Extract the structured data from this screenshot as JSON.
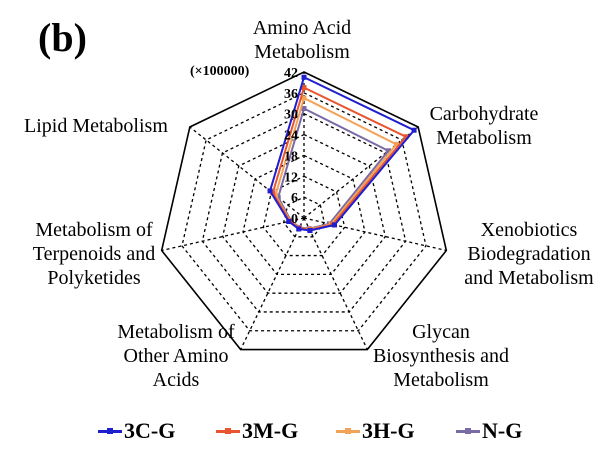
{
  "panel_label": "(b)",
  "scale_note": "(×100000)",
  "chart_data": {
    "type": "radar",
    "categories": [
      "Amino Acid Metabolism",
      "Carbohydrate Metabolism",
      "Xenobiotics Biodegradation and Metabolism",
      "Glycan Biosynthesis and Metabolism",
      "Metabolism of Other Amino Acids",
      "Metabolism of Terpenoids and Polyketides",
      "Lipid Metabolism"
    ],
    "category_lines": [
      [
        "Amino Acid",
        "Metabolism"
      ],
      [
        "Carbohydrate",
        "Metabolism"
      ],
      [
        "Xenobiotics",
        "Biodegradation",
        "and Metabolism"
      ],
      [
        "Glycan",
        "Biosynthesis and",
        "Metabolism"
      ],
      [
        "Metabolism of",
        "Other Amino",
        "Acids"
      ],
      [
        "Metabolism of",
        "Terpenoids and",
        "Polyketides"
      ],
      [
        "Lipid Metabolism"
      ]
    ],
    "ticks": [
      0,
      6,
      12,
      18,
      24,
      30,
      36,
      42
    ],
    "rlim": [
      0,
      42
    ],
    "grid": true,
    "legend_position": "bottom",
    "series": [
      {
        "name": "3C-G",
        "color": "#1f1fd0",
        "values": [
          40.5,
          40.5,
          9.0,
          4.0,
          3.5,
          4.5,
          12.5
        ]
      },
      {
        "name": "3M-G",
        "color": "#e8542f",
        "values": [
          37.5,
          37.5,
          8.5,
          3.8,
          3.3,
          4.2,
          11.5
        ]
      },
      {
        "name": "3H-G",
        "color": "#f2a35a",
        "values": [
          34.5,
          34.0,
          8.0,
          3.6,
          3.2,
          4.0,
          10.5
        ]
      },
      {
        "name": "N-G",
        "color": "#7a6aa6",
        "values": [
          31.5,
          31.0,
          7.5,
          3.4,
          3.0,
          3.8,
          9.5
        ]
      }
    ]
  }
}
